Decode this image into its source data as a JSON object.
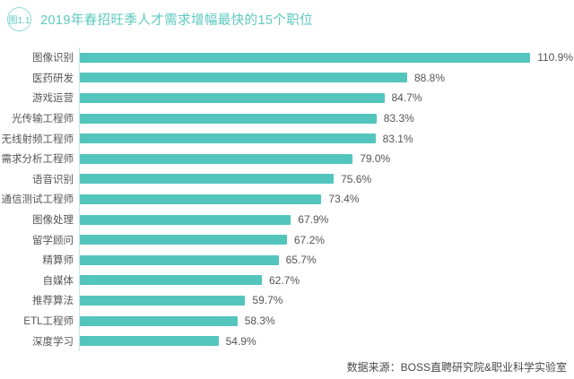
{
  "header": {
    "badge": "图1.1",
    "title": "2019年春招旺季人才需求增幅最快的15个职位"
  },
  "footer": {
    "source": "数据来源：BOSS直聘研究院&职业科学实验室"
  },
  "colors": {
    "background": "#FFFFFF",
    "bar": "#54C5BD",
    "title_text": "#5BC8C1",
    "badge_border": "#8ED8D2",
    "label_text": "#555555",
    "axis_line": "#C9E8E5",
    "footer_text": "#4A4A4A"
  },
  "chart_data": {
    "type": "bar",
    "orientation": "horizontal",
    "title": "2019年春招旺季人才需求增幅最快的15个职位",
    "categories": [
      "图像识别",
      "医药研发",
      "游戏运营",
      "光传输工程师",
      "无线射频工程师",
      "需求分析工程师",
      "语音识别",
      "通信测试工程师",
      "图像处理",
      "留学顾问",
      "精算师",
      "自媒体",
      "推荐算法",
      "ETL工程师",
      "深度学习"
    ],
    "values": [
      110.9,
      88.8,
      84.7,
      83.3,
      83.1,
      79.0,
      75.6,
      73.4,
      67.9,
      67.2,
      65.7,
      62.7,
      59.7,
      58.3,
      54.9
    ],
    "unit": "%",
    "value_labels": [
      "110.9%",
      "88.8%",
      "84.7%",
      "83.3%",
      "83.1%",
      "79.0%",
      "75.6%",
      "73.4%",
      "67.9%",
      "67.2%",
      "65.7%",
      "62.7%",
      "59.7%",
      "58.3%",
      "54.9%"
    ],
    "xlabel": "",
    "ylabel": "",
    "xlim": [
      30,
      112
    ],
    "grid": false,
    "legend": null,
    "source": "数据来源：BOSS直聘研究院&职业科学实验室"
  }
}
